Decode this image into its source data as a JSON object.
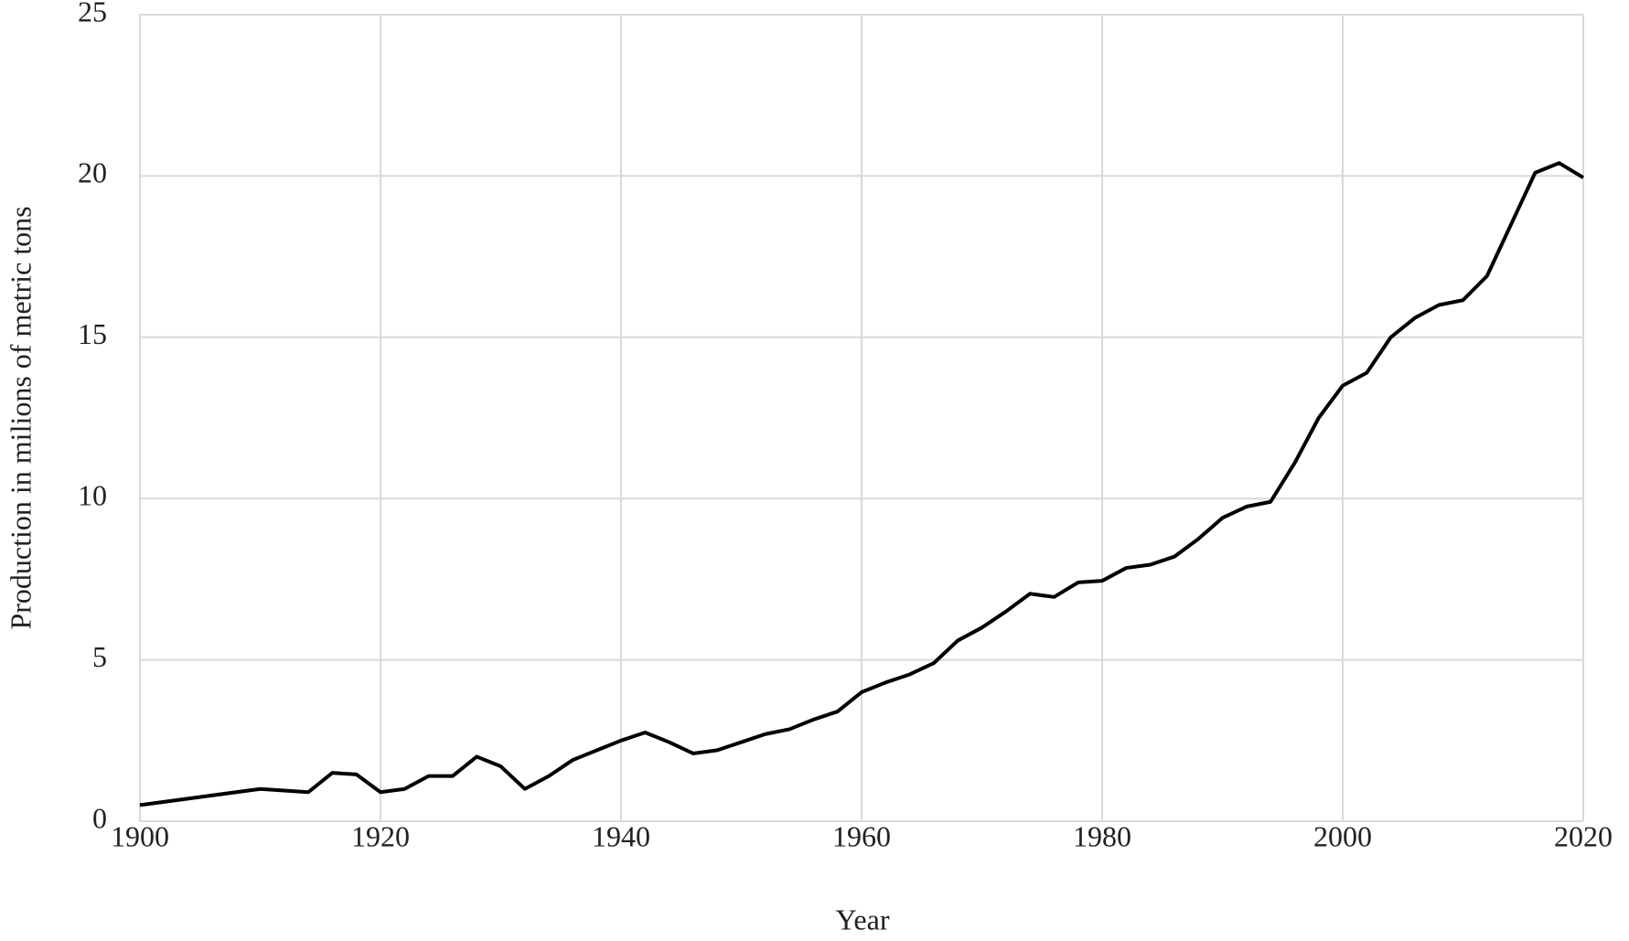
{
  "chart_data": {
    "type": "line",
    "x_label": "Year",
    "y_label": "Production in milions of metric tons",
    "x": [
      1900,
      1910,
      1914,
      1916,
      1918,
      1920,
      1922,
      1924,
      1926,
      1928,
      1930,
      1932,
      1934,
      1936,
      1938,
      1940,
      1942,
      1944,
      1946,
      1948,
      1950,
      1952,
      1954,
      1956,
      1958,
      1960,
      1962,
      1964,
      1966,
      1968,
      1970,
      1972,
      1974,
      1976,
      1978,
      1980,
      1982,
      1984,
      1986,
      1988,
      1990,
      1992,
      1994,
      1996,
      1998,
      2000,
      2002,
      2004,
      2006,
      2008,
      2010,
      2012,
      2014,
      2016,
      2018,
      2020
    ],
    "series": [
      {
        "color": "#000000",
        "values": [
          0.5,
          1.0,
          0.9,
          1.5,
          1.45,
          0.9,
          1.0,
          1.4,
          1.4,
          2.0,
          1.7,
          1.0,
          1.4,
          1.9,
          2.2,
          2.5,
          2.75,
          2.45,
          2.1,
          2.2,
          2.45,
          2.7,
          2.85,
          3.15,
          3.4,
          4.0,
          4.3,
          4.55,
          4.9,
          5.6,
          6.0,
          6.5,
          7.05,
          6.95,
          7.4,
          7.45,
          7.85,
          7.95,
          8.2,
          8.75,
          9.4,
          9.75,
          9.9,
          11.1,
          12.5,
          13.5,
          13.9,
          15.0,
          15.6,
          16.0,
          16.15,
          16.9,
          18.5,
          20.1,
          20.4,
          19.95
        ]
      }
    ],
    "xlim": [
      1900,
      2020
    ],
    "xticks": [
      1900,
      1920,
      1940,
      1960,
      1980,
      2000,
      2020
    ],
    "ylim": [
      0,
      25
    ],
    "yticks": [
      0,
      5,
      10,
      15,
      20,
      25
    ],
    "grid": true
  }
}
